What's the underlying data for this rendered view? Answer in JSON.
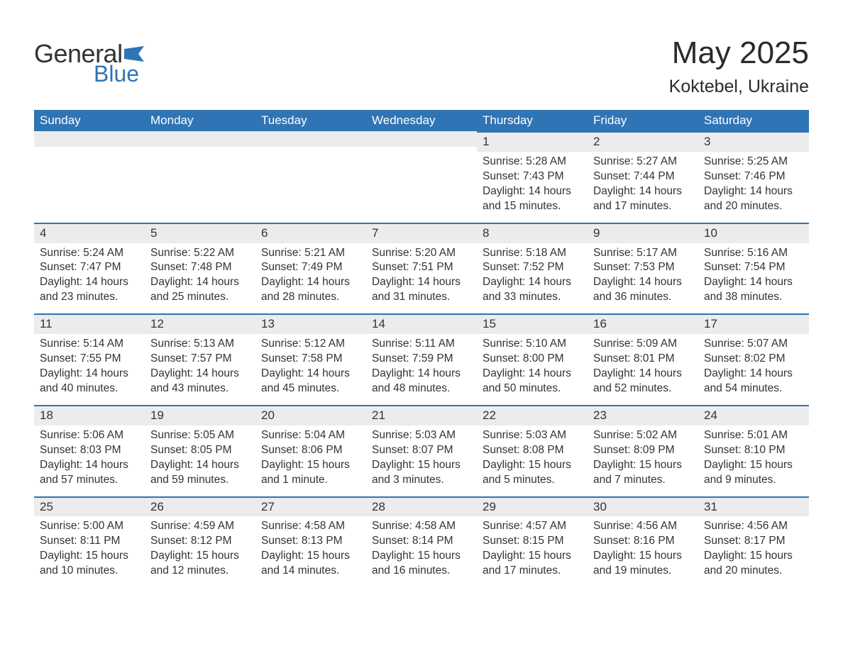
{
  "brand": {
    "name_part1": "General",
    "name_part2": "Blue",
    "flag_color": "#2f74b5"
  },
  "colors": {
    "header_bg": "#2f74b5",
    "header_text": "#ffffff",
    "daybar_bg": "#ececec",
    "daybar_border": "#2f74b5",
    "text": "#333333",
    "background": "#ffffff"
  },
  "typography": {
    "title_fontsize": 44,
    "subtitle_fontsize": 25,
    "dow_fontsize": 17,
    "body_fontsize": 15.5
  },
  "title": "May 2025",
  "location": "Koktebel, Ukraine",
  "days_of_week": [
    "Sunday",
    "Monday",
    "Tuesday",
    "Wednesday",
    "Thursday",
    "Friday",
    "Saturday"
  ],
  "weeks": [
    [
      {
        "empty": true
      },
      {
        "empty": true
      },
      {
        "empty": true
      },
      {
        "empty": true
      },
      {
        "day": "1",
        "sunrise": "Sunrise: 5:28 AM",
        "sunset": "Sunset: 7:43 PM",
        "daylight1": "Daylight: 14 hours",
        "daylight2": "and 15 minutes."
      },
      {
        "day": "2",
        "sunrise": "Sunrise: 5:27 AM",
        "sunset": "Sunset: 7:44 PM",
        "daylight1": "Daylight: 14 hours",
        "daylight2": "and 17 minutes."
      },
      {
        "day": "3",
        "sunrise": "Sunrise: 5:25 AM",
        "sunset": "Sunset: 7:46 PM",
        "daylight1": "Daylight: 14 hours",
        "daylight2": "and 20 minutes."
      }
    ],
    [
      {
        "day": "4",
        "sunrise": "Sunrise: 5:24 AM",
        "sunset": "Sunset: 7:47 PM",
        "daylight1": "Daylight: 14 hours",
        "daylight2": "and 23 minutes."
      },
      {
        "day": "5",
        "sunrise": "Sunrise: 5:22 AM",
        "sunset": "Sunset: 7:48 PM",
        "daylight1": "Daylight: 14 hours",
        "daylight2": "and 25 minutes."
      },
      {
        "day": "6",
        "sunrise": "Sunrise: 5:21 AM",
        "sunset": "Sunset: 7:49 PM",
        "daylight1": "Daylight: 14 hours",
        "daylight2": "and 28 minutes."
      },
      {
        "day": "7",
        "sunrise": "Sunrise: 5:20 AM",
        "sunset": "Sunset: 7:51 PM",
        "daylight1": "Daylight: 14 hours",
        "daylight2": "and 31 minutes."
      },
      {
        "day": "8",
        "sunrise": "Sunrise: 5:18 AM",
        "sunset": "Sunset: 7:52 PM",
        "daylight1": "Daylight: 14 hours",
        "daylight2": "and 33 minutes."
      },
      {
        "day": "9",
        "sunrise": "Sunrise: 5:17 AM",
        "sunset": "Sunset: 7:53 PM",
        "daylight1": "Daylight: 14 hours",
        "daylight2": "and 36 minutes."
      },
      {
        "day": "10",
        "sunrise": "Sunrise: 5:16 AM",
        "sunset": "Sunset: 7:54 PM",
        "daylight1": "Daylight: 14 hours",
        "daylight2": "and 38 minutes."
      }
    ],
    [
      {
        "day": "11",
        "sunrise": "Sunrise: 5:14 AM",
        "sunset": "Sunset: 7:55 PM",
        "daylight1": "Daylight: 14 hours",
        "daylight2": "and 40 minutes."
      },
      {
        "day": "12",
        "sunrise": "Sunrise: 5:13 AM",
        "sunset": "Sunset: 7:57 PM",
        "daylight1": "Daylight: 14 hours",
        "daylight2": "and 43 minutes."
      },
      {
        "day": "13",
        "sunrise": "Sunrise: 5:12 AM",
        "sunset": "Sunset: 7:58 PM",
        "daylight1": "Daylight: 14 hours",
        "daylight2": "and 45 minutes."
      },
      {
        "day": "14",
        "sunrise": "Sunrise: 5:11 AM",
        "sunset": "Sunset: 7:59 PM",
        "daylight1": "Daylight: 14 hours",
        "daylight2": "and 48 minutes."
      },
      {
        "day": "15",
        "sunrise": "Sunrise: 5:10 AM",
        "sunset": "Sunset: 8:00 PM",
        "daylight1": "Daylight: 14 hours",
        "daylight2": "and 50 minutes."
      },
      {
        "day": "16",
        "sunrise": "Sunrise: 5:09 AM",
        "sunset": "Sunset: 8:01 PM",
        "daylight1": "Daylight: 14 hours",
        "daylight2": "and 52 minutes."
      },
      {
        "day": "17",
        "sunrise": "Sunrise: 5:07 AM",
        "sunset": "Sunset: 8:02 PM",
        "daylight1": "Daylight: 14 hours",
        "daylight2": "and 54 minutes."
      }
    ],
    [
      {
        "day": "18",
        "sunrise": "Sunrise: 5:06 AM",
        "sunset": "Sunset: 8:03 PM",
        "daylight1": "Daylight: 14 hours",
        "daylight2": "and 57 minutes."
      },
      {
        "day": "19",
        "sunrise": "Sunrise: 5:05 AM",
        "sunset": "Sunset: 8:05 PM",
        "daylight1": "Daylight: 14 hours",
        "daylight2": "and 59 minutes."
      },
      {
        "day": "20",
        "sunrise": "Sunrise: 5:04 AM",
        "sunset": "Sunset: 8:06 PM",
        "daylight1": "Daylight: 15 hours",
        "daylight2": "and 1 minute."
      },
      {
        "day": "21",
        "sunrise": "Sunrise: 5:03 AM",
        "sunset": "Sunset: 8:07 PM",
        "daylight1": "Daylight: 15 hours",
        "daylight2": "and 3 minutes."
      },
      {
        "day": "22",
        "sunrise": "Sunrise: 5:03 AM",
        "sunset": "Sunset: 8:08 PM",
        "daylight1": "Daylight: 15 hours",
        "daylight2": "and 5 minutes."
      },
      {
        "day": "23",
        "sunrise": "Sunrise: 5:02 AM",
        "sunset": "Sunset: 8:09 PM",
        "daylight1": "Daylight: 15 hours",
        "daylight2": "and 7 minutes."
      },
      {
        "day": "24",
        "sunrise": "Sunrise: 5:01 AM",
        "sunset": "Sunset: 8:10 PM",
        "daylight1": "Daylight: 15 hours",
        "daylight2": "and 9 minutes."
      }
    ],
    [
      {
        "day": "25",
        "sunrise": "Sunrise: 5:00 AM",
        "sunset": "Sunset: 8:11 PM",
        "daylight1": "Daylight: 15 hours",
        "daylight2": "and 10 minutes."
      },
      {
        "day": "26",
        "sunrise": "Sunrise: 4:59 AM",
        "sunset": "Sunset: 8:12 PM",
        "daylight1": "Daylight: 15 hours",
        "daylight2": "and 12 minutes."
      },
      {
        "day": "27",
        "sunrise": "Sunrise: 4:58 AM",
        "sunset": "Sunset: 8:13 PM",
        "daylight1": "Daylight: 15 hours",
        "daylight2": "and 14 minutes."
      },
      {
        "day": "28",
        "sunrise": "Sunrise: 4:58 AM",
        "sunset": "Sunset: 8:14 PM",
        "daylight1": "Daylight: 15 hours",
        "daylight2": "and 16 minutes."
      },
      {
        "day": "29",
        "sunrise": "Sunrise: 4:57 AM",
        "sunset": "Sunset: 8:15 PM",
        "daylight1": "Daylight: 15 hours",
        "daylight2": "and 17 minutes."
      },
      {
        "day": "30",
        "sunrise": "Sunrise: 4:56 AM",
        "sunset": "Sunset: 8:16 PM",
        "daylight1": "Daylight: 15 hours",
        "daylight2": "and 19 minutes."
      },
      {
        "day": "31",
        "sunrise": "Sunrise: 4:56 AM",
        "sunset": "Sunset: 8:17 PM",
        "daylight1": "Daylight: 15 hours",
        "daylight2": "and 20 minutes."
      }
    ]
  ]
}
